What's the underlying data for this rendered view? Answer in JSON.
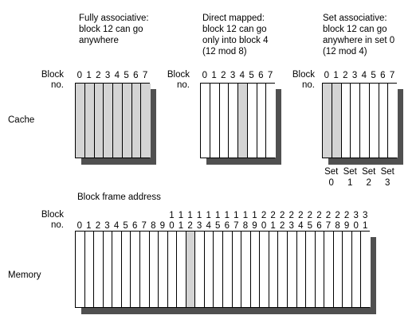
{
  "captions": {
    "fully": "Fully associative:\nblock 12 can go\nanywhere",
    "direct": "Direct mapped:\nblock 12 can go\nonly into block 4\n(12 mod 8)",
    "set": "Set associative:\nblock 12 can go\nanywhere in set 0\n(12 mod 4)"
  },
  "labels": {
    "block_no": "Block\nno.",
    "cache": "Cache",
    "memory": "Memory",
    "block_frame_address": "Block frame address"
  },
  "cache_block_numbers": [
    "0",
    "1",
    "2",
    "3",
    "4",
    "5",
    "6",
    "7"
  ],
  "sets": [
    {
      "word": "Set",
      "num": "0"
    },
    {
      "word": "Set",
      "num": "1"
    },
    {
      "word": "Set",
      "num": "2"
    },
    {
      "word": "Set",
      "num": "3"
    }
  ],
  "memory_block_numbers": {
    "tens": [
      "",
      "",
      "",
      "",
      "",
      "",
      "",
      "",
      "",
      "",
      "1",
      "1",
      "1",
      "1",
      "1",
      "1",
      "1",
      "1",
      "1",
      "1",
      "2",
      "2",
      "2",
      "2",
      "2",
      "2",
      "2",
      "2",
      "2",
      "2",
      "3",
      "3"
    ],
    "ones": [
      "0",
      "1",
      "2",
      "3",
      "4",
      "5",
      "6",
      "7",
      "8",
      "9",
      "0",
      "1",
      "2",
      "3",
      "4",
      "5",
      "6",
      "7",
      "8",
      "9",
      "0",
      "1",
      "2",
      "3",
      "4",
      "5",
      "6",
      "7",
      "8",
      "9",
      "0",
      "1"
    ]
  },
  "colors": {
    "highlight": "#d4d4d4",
    "shadow": "#505050",
    "line": "#000000"
  },
  "highlight": {
    "fully": [
      0,
      1,
      2,
      3,
      4,
      5,
      6,
      7
    ],
    "direct": [
      4
    ],
    "set": [
      0,
      1
    ],
    "memory": [
      12
    ]
  }
}
